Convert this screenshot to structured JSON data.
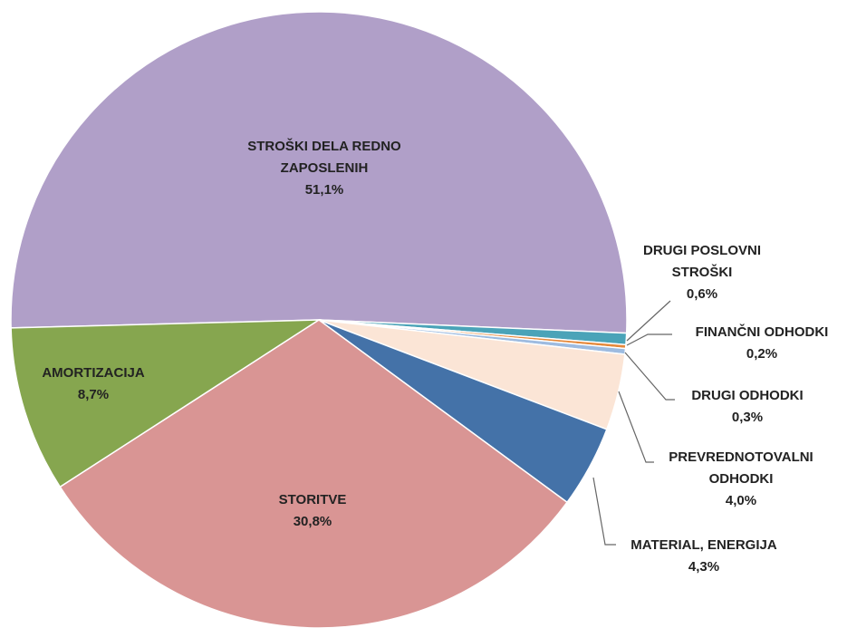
{
  "chart_data": {
    "type": "pie",
    "categories": [
      "STROŠKI DELA REDNO ZAPOSLENIH",
      "DRUGI POSLOVNI STROŠKI",
      "FINANČNI ODHODKI",
      "DRUGI ODHODKI",
      "PREVREDNOTOVALNI ODHODKI",
      "MATERIAL, ENERGIJA",
      "STORITVE",
      "AMORTIZACIJA"
    ],
    "values": [
      51.1,
      0.6,
      0.2,
      0.3,
      4.0,
      4.3,
      30.8,
      8.7
    ],
    "value_labels": [
      "51,1%",
      "0,6%",
      "0,2%",
      "0,3%",
      "4,0%",
      "4,3%",
      "30,8%",
      "8,7%"
    ],
    "colors": [
      "#b09fc8",
      "#4aa3b8",
      "#e5883a",
      "#9dbbe0",
      "#fbe5d6",
      "#4472a8",
      "#d99594",
      "#86a64f"
    ]
  }
}
